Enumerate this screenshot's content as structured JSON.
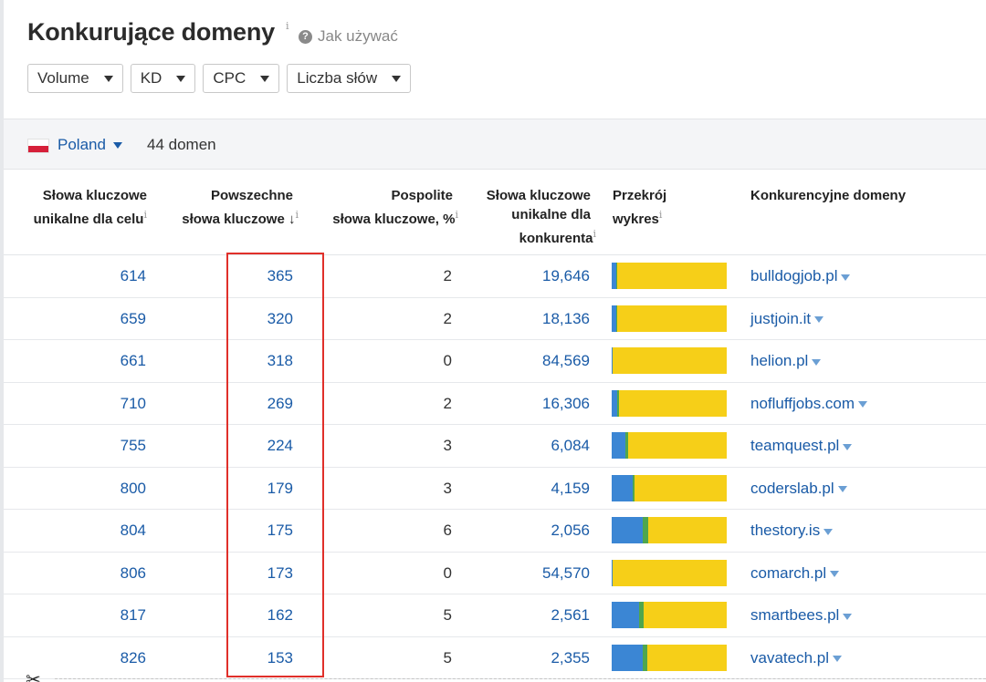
{
  "title": "Konkurujące domeny",
  "title_info": "i",
  "help_icon_text": "?",
  "help_label": "Jak używać",
  "filters": [
    "Volume",
    "KD",
    "CPC",
    "Liczba słów"
  ],
  "country": {
    "name": "Poland",
    "flag_colors": [
      "#ffffff",
      "#d6203a"
    ],
    "count_label": "44 domen"
  },
  "columns": {
    "unique_target": {
      "line1": "Słowa kluczowe",
      "line2": "unikalne dla celu",
      "info": "i"
    },
    "common_keywords": {
      "line1": "Powszechne",
      "line2": "słowa kluczowe",
      "sort_icon": "↓",
      "info": "i"
    },
    "common_percent": {
      "line1": "Pospolite",
      "line2": "słowa kluczowe, %",
      "info": "i"
    },
    "unique_competitor": {
      "line1": "Słowa kluczowe",
      "line2": "unikalne dla",
      "line3": "konkurenta",
      "info": "i"
    },
    "chart": {
      "line1": "Przekrój",
      "line2": "wykres",
      "info": "i"
    },
    "domains": {
      "line1": "Konkurencyjne domeny"
    }
  },
  "colors": {
    "link": "#1a5ba7",
    "bar_blue": "#3b86d4",
    "bar_green": "#4fa64e",
    "bar_yellow": "#f6cf18",
    "highlight": "#e0302a"
  },
  "rows": [
    {
      "unique_target": "614",
      "common": "365",
      "percent": "2",
      "unique_competitor": "19,646",
      "domain": "bulldogjob.pl",
      "bar": {
        "blue": 0.04,
        "green": 0.01
      }
    },
    {
      "unique_target": "659",
      "common": "320",
      "percent": "2",
      "unique_competitor": "18,136",
      "domain": "justjoin.it",
      "bar": {
        "blue": 0.04,
        "green": 0.01
      }
    },
    {
      "unique_target": "661",
      "common": "318",
      "percent": "0",
      "unique_competitor": "84,569",
      "domain": "helion.pl",
      "bar": {
        "blue": 0.01,
        "green": 0.0
      }
    },
    {
      "unique_target": "710",
      "common": "269",
      "percent": "2",
      "unique_competitor": "16,306",
      "domain": "nofluffjobs.com",
      "bar": {
        "blue": 0.05,
        "green": 0.01
      }
    },
    {
      "unique_target": "755",
      "common": "224",
      "percent": "3",
      "unique_competitor": "6,084",
      "domain": "teamquest.pl",
      "bar": {
        "blue": 0.12,
        "green": 0.02
      }
    },
    {
      "unique_target": "800",
      "common": "179",
      "percent": "3",
      "unique_competitor": "4,159",
      "domain": "coderslab.pl",
      "bar": {
        "blue": 0.18,
        "green": 0.02
      }
    },
    {
      "unique_target": "804",
      "common": "175",
      "percent": "6",
      "unique_competitor": "2,056",
      "domain": "thestory.is",
      "bar": {
        "blue": 0.27,
        "green": 0.05
      }
    },
    {
      "unique_target": "806",
      "common": "173",
      "percent": "0",
      "unique_competitor": "54,570",
      "domain": "comarch.pl",
      "bar": {
        "blue": 0.01,
        "green": 0.0
      }
    },
    {
      "unique_target": "817",
      "common": "162",
      "percent": "5",
      "unique_competitor": "2,561",
      "domain": "smartbees.pl",
      "bar": {
        "blue": 0.24,
        "green": 0.04
      }
    },
    {
      "unique_target": "826",
      "common": "153",
      "percent": "5",
      "unique_competitor": "2,355",
      "domain": "vavatech.pl",
      "bar": {
        "blue": 0.27,
        "green": 0.04
      }
    }
  ],
  "scissors_icon": "✂"
}
